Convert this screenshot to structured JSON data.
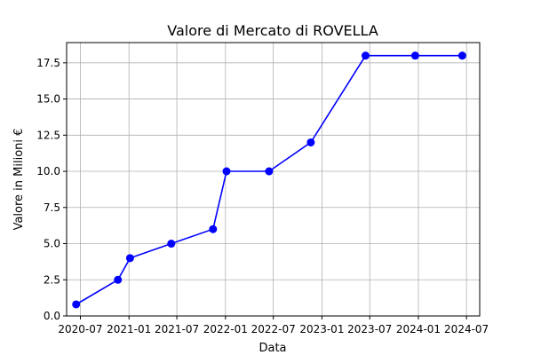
{
  "chart_data": {
    "type": "line",
    "title": "Valore di Mercato di ROVELLA",
    "xlabel": "Data",
    "ylabel": "Valore in Milioni €",
    "x_ticks": [
      "2020-07",
      "2021-01",
      "2021-07",
      "2022-01",
      "2022-07",
      "2023-01",
      "2023-07",
      "2024-01",
      "2024-07"
    ],
    "y_ticks": [
      "0.0",
      "2.5",
      "5.0",
      "7.5",
      "10.0",
      "12.5",
      "15.0",
      "17.5"
    ],
    "ylim": [
      0,
      18.9
    ],
    "xlim": [
      "2020-05-10",
      "2024-08-20"
    ],
    "grid": true,
    "line_color": "#0000ff",
    "series": [
      {
        "x": [
          "2020-06-15",
          "2020-11-20",
          "2021-01-05",
          "2021-06-10",
          "2021-11-15",
          "2022-01-05",
          "2022-06-15",
          "2022-11-20",
          "2023-06-15",
          "2023-12-20",
          "2024-06-15"
        ],
        "values": [
          0.8,
          2.5,
          4.0,
          5.0,
          6.0,
          10.0,
          10.0,
          12.0,
          18.0,
          18.0,
          18.0
        ]
      }
    ]
  }
}
